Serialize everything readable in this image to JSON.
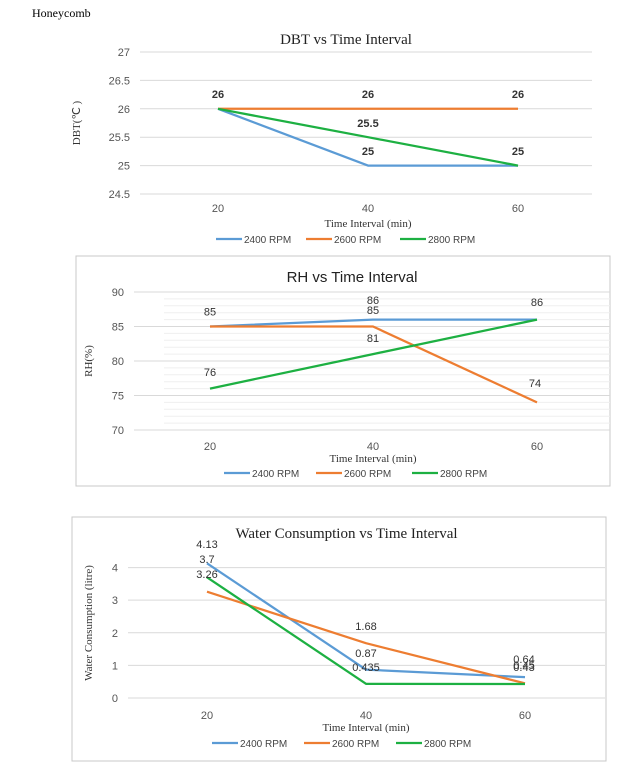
{
  "header": {
    "label": "Honeycomb"
  },
  "chart_data": [
    {
      "type": "line",
      "title": "DBT vs Time Interval",
      "xlabel": "Time  Interval  (min)",
      "ylabel": "DBT(℃ )",
      "categories": [
        "20",
        "40",
        "60"
      ],
      "y_ticks": [
        "24.5",
        "25",
        "25.5",
        "26",
        "26.5",
        "27"
      ],
      "ylim": [
        24.5,
        27
      ],
      "grid": true,
      "legend_position": "bottom",
      "series": [
        {
          "name": "2400 RPM",
          "color": "#5B9BD5",
          "values": [
            26,
            25,
            25
          ],
          "labels": [
            "",
            "25",
            ""
          ]
        },
        {
          "name": "2600 RPM",
          "color": "#ED7D31",
          "values": [
            26,
            26,
            26
          ],
          "labels": [
            "26",
            "26",
            "26"
          ]
        },
        {
          "name": "2800 RPM",
          "color": "#1DB042",
          "values": [
            26,
            25.5,
            25
          ],
          "labels": [
            "",
            "25.5",
            "25"
          ]
        }
      ]
    },
    {
      "type": "line",
      "title": "RH vs Time Interval",
      "xlabel": "Time  Interval  (min)",
      "ylabel": "RH(%)",
      "categories": [
        "20",
        "40",
        "60"
      ],
      "y_ticks": [
        "70",
        "75",
        "80",
        "85",
        "90"
      ],
      "ylim": [
        70,
        90
      ],
      "grid": true,
      "legend_position": "bottom",
      "series": [
        {
          "name": "2400 RPM",
          "color": "#5B9BD5",
          "values": [
            85,
            86,
            86
          ],
          "labels": [
            "",
            "86",
            "86"
          ]
        },
        {
          "name": "2600 RPM",
          "color": "#ED7D31",
          "values": [
            85,
            85,
            74
          ],
          "labels": [
            "85",
            "85",
            "74"
          ]
        },
        {
          "name": "2800 RPM",
          "color": "#1DB042",
          "values": [
            76,
            81,
            86
          ],
          "labels": [
            "76",
            "81",
            ""
          ]
        }
      ]
    },
    {
      "type": "line",
      "title": "Water Consumption vs Time Interval",
      "xlabel": "Time  Interval  (min)",
      "ylabel": "Water  Consumption  (litre)",
      "categories": [
        "20",
        "40",
        "60"
      ],
      "y_ticks": [
        "0",
        "1",
        "2",
        "3",
        "4"
      ],
      "ylim": [
        0,
        4.6
      ],
      "grid": true,
      "legend_position": "bottom",
      "series": [
        {
          "name": "2400 RPM",
          "color": "#5B9BD5",
          "values": [
            4.13,
            0.87,
            0.64
          ],
          "labels": [
            "4.13",
            "0.87",
            "0.64"
          ]
        },
        {
          "name": "2600 RPM",
          "color": "#ED7D31",
          "values": [
            3.26,
            1.68,
            0.45
          ],
          "labels": [
            "3.26",
            "1.68",
            "0.45"
          ]
        },
        {
          "name": "2800 RPM",
          "color": "#1DB042",
          "values": [
            3.7,
            0.435,
            0.43
          ],
          "labels": [
            "3.7",
            "0.435",
            "0.43"
          ]
        }
      ]
    }
  ]
}
